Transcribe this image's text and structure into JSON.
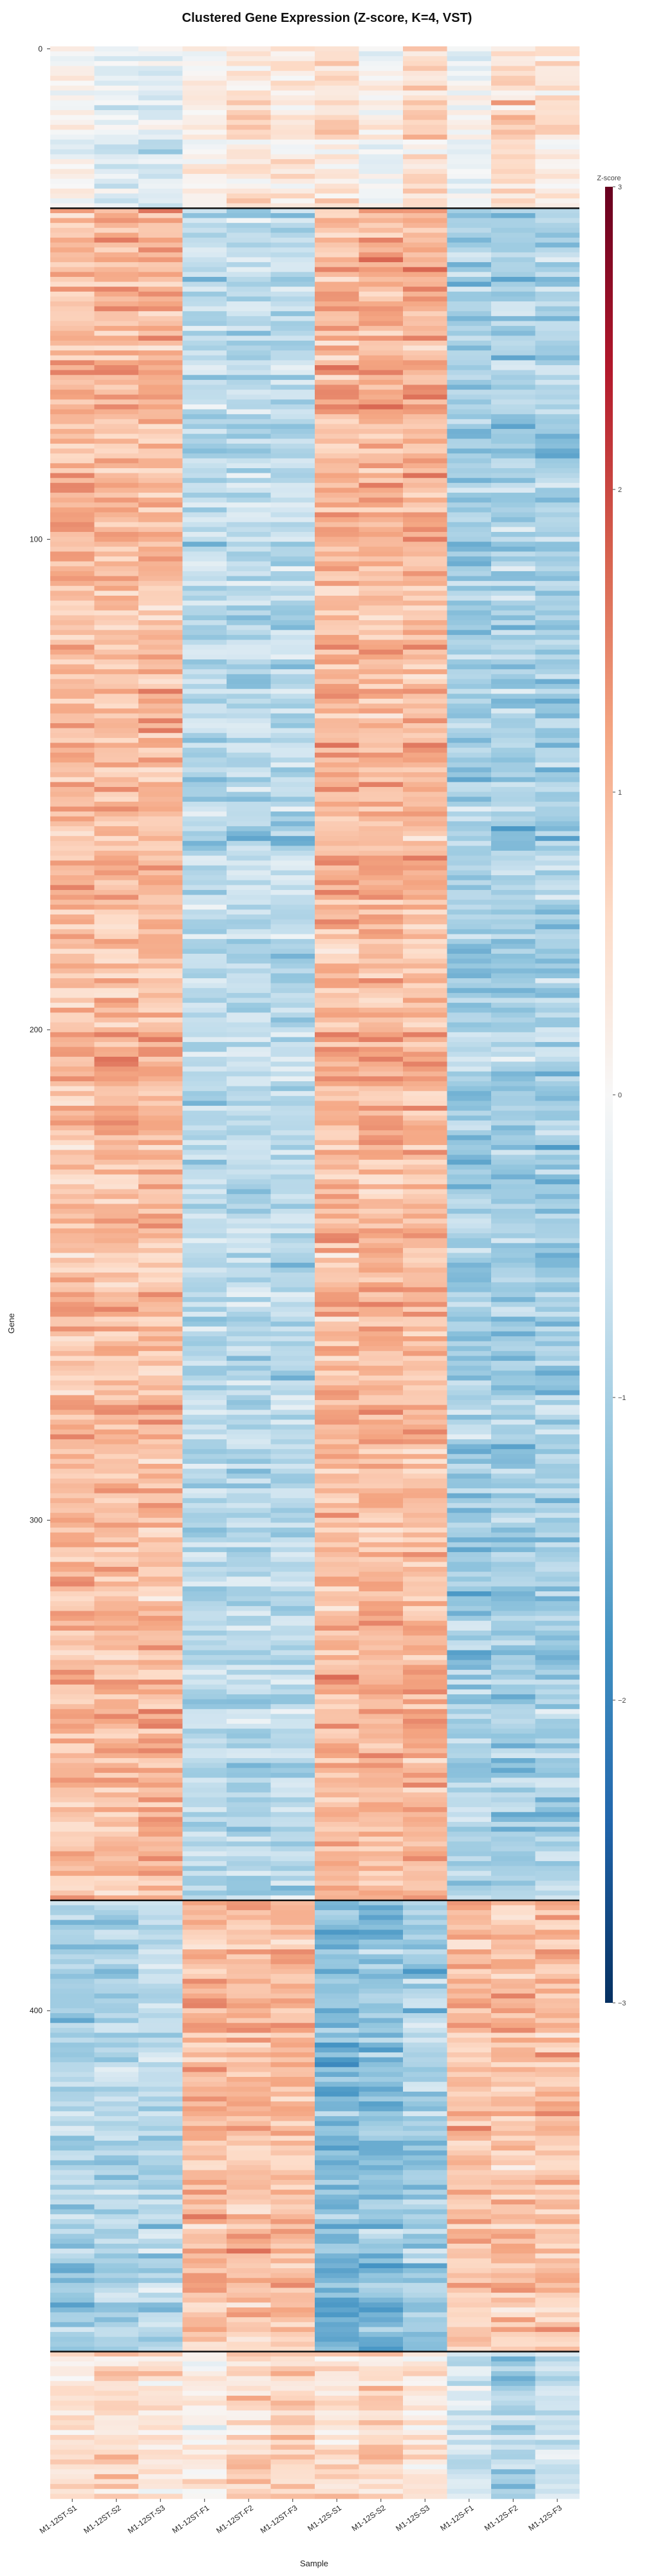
{
  "chart_data": {
    "type": "heatmap",
    "title": "Clustered Gene Expression (Z-score, K=4, VST)",
    "xlabel": "Sample",
    "ylabel": "Gene",
    "samples": [
      "M1-12ST-S1",
      "M1-12ST-S2",
      "M1-12ST-S3",
      "M1-12ST-F1",
      "M1-12ST-F2",
      "M1-12ST-F3",
      "M1-12S-S1",
      "M1-12S-S2",
      "M1-12S-S3",
      "M1-12S-F1",
      "M1-12S-F2",
      "M1-12S-F3"
    ],
    "n_genes": 500,
    "y_ticks": [
      0,
      100,
      200,
      300,
      400
    ],
    "cluster_boundaries": [
      33,
      378,
      470
    ],
    "cluster_profiles": [
      [
        0.0,
        -0.3,
        -0.4,
        0.1,
        0.4,
        0.3,
        0.4,
        0.0,
        0.5,
        -0.2,
        0.5,
        0.3
      ],
      [
        0.95,
        0.95,
        0.95,
        -0.8,
        -0.8,
        -0.8,
        1.0,
        1.0,
        1.0,
        -1.0,
        -1.0,
        -1.0
      ],
      [
        -1.0,
        -0.9,
        -0.8,
        1.0,
        1.0,
        1.0,
        -1.3,
        -1.2,
        -1.0,
        0.9,
        0.9,
        0.9
      ],
      [
        0.4,
        0.5,
        0.3,
        0.1,
        0.5,
        0.6,
        0.4,
        0.6,
        0.3,
        -0.6,
        -1.0,
        -0.7
      ]
    ],
    "colorbar": {
      "label": "Z-score",
      "range": [
        -3,
        3
      ],
      "ticks": [
        -3,
        -2,
        -1,
        0,
        1,
        2,
        3
      ],
      "colors": [
        "#053061",
        "#2166ac",
        "#4393c3",
        "#92c5de",
        "#d1e5f0",
        "#f7f7f7",
        "#fddbc7",
        "#f4a582",
        "#d6604d",
        "#b2182b",
        "#67001f"
      ]
    }
  }
}
